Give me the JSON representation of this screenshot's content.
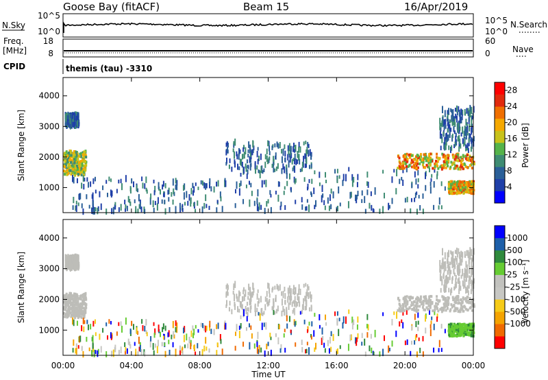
{
  "header": {
    "station": "Goose Bay (fitACF)",
    "beam": "Beam 15",
    "date": "16/Apr/2019"
  },
  "sky_panel": {
    "left_label": "N.Sky",
    "left_ticks": [
      "10^5",
      "10^0"
    ],
    "right_ticks": [
      "10^5",
      "10^0"
    ],
    "right_label": "N.Search"
  },
  "freq_panel": {
    "label_top": "Freq.",
    "label_bottom": "[MHz]",
    "left_ticks": [
      "18",
      "8"
    ],
    "right_ticks": [
      "60",
      "0"
    ],
    "right_label": "Nave"
  },
  "cpid": {
    "label": "CPID",
    "value": "themis (tau) -3310"
  },
  "colors": {
    "power_scale": [
      "#0000ff",
      "#1f3fa8",
      "#2a5f98",
      "#3f8c73",
      "#55b34a",
      "#c8c21a",
      "#f5a800",
      "#f06f00",
      "#e12a0d",
      "#ff0000"
    ],
    "velocity_scale": [
      "#ff0000",
      "#f06a00",
      "#f4a300",
      "#f6cb18",
      "#c7c7c3",
      "#c2c2be",
      "#66cc33",
      "#2f8a3d",
      "#1d5fa9",
      "#0000ff"
    ],
    "ground_scatter": "#bdbdb8"
  },
  "chart_data": [
    {
      "type": "heatmap",
      "title": "Power",
      "xlabel": "",
      "ylabel": "Slant Range [km]",
      "xlim_hours": [
        0,
        24
      ],
      "ylim_km": [
        180,
        4600
      ],
      "y_ticks": [
        "1000",
        "2000",
        "3000",
        "4000"
      ],
      "colorbar": {
        "label": "Power [dB]",
        "ticks": [
          "4",
          "8",
          "12",
          "16",
          "20",
          "24",
          "28"
        ],
        "range": [
          0,
          30
        ]
      },
      "scatter_regions": [
        {
          "t0": 0.0,
          "t1": 1.3,
          "r0": 1400,
          "r1": 2200,
          "level": "16-24 dB"
        },
        {
          "t0": 0.1,
          "t1": 0.9,
          "r0": 3000,
          "r1": 3400,
          "level": "4-8 dB"
        },
        {
          "t0": 0.5,
          "t1": 9.5,
          "r0": 200,
          "r1": 1300,
          "level": "4-12 dB"
        },
        {
          "t0": 9.5,
          "t1": 14.5,
          "r0": 1500,
          "r1": 2500,
          "level": "4-12 dB"
        },
        {
          "t0": 10.0,
          "t1": 22.5,
          "r0": 200,
          "r1": 1600,
          "level": "4-12 dB"
        },
        {
          "t0": 19.5,
          "t1": 24.0,
          "r0": 1600,
          "r1": 2100,
          "level": "16-28 dB"
        },
        {
          "t0": 22.5,
          "t1": 24.0,
          "r0": 800,
          "r1": 1200,
          "level": "20-28 dB"
        },
        {
          "t0": 22.0,
          "t1": 24.0,
          "r0": 2200,
          "r1": 3600,
          "level": "4-8 dB"
        }
      ]
    },
    {
      "type": "heatmap",
      "title": "Velocity",
      "xlabel": "Time UT",
      "ylabel": "Slant Range [km]",
      "xlim_hours": [
        0,
        24
      ],
      "ylim_km": [
        180,
        4600
      ],
      "x_ticks": [
        "00:00",
        "04:00",
        "08:00",
        "12:00",
        "16:00",
        "20:00",
        "00:00"
      ],
      "y_ticks": [
        "1000",
        "2000",
        "3000",
        "4000"
      ],
      "colorbar": {
        "label": "Velocity [m s⁻¹]",
        "ticks": [
          "1000",
          "500",
          "100",
          "25",
          "-25",
          "-100",
          "-500",
          "-1000"
        ]
      },
      "scatter_regions": [
        {
          "t0": 0.0,
          "t1": 1.3,
          "r0": 1400,
          "r1": 2200,
          "level": "ground scatter"
        },
        {
          "t0": 0.1,
          "t1": 0.9,
          "r0": 3000,
          "r1": 3400,
          "level": "ground scatter"
        },
        {
          "t0": 0.5,
          "t1": 9.5,
          "r0": 200,
          "r1": 1300,
          "level": "mixed -500..500"
        },
        {
          "t0": 9.5,
          "t1": 14.5,
          "r0": 1500,
          "r1": 2500,
          "level": "ground scatter"
        },
        {
          "t0": 10.0,
          "t1": 22.5,
          "r0": 200,
          "r1": 1600,
          "level": "mixed -500..500"
        },
        {
          "t0": 19.5,
          "t1": 24.0,
          "r0": 1600,
          "r1": 2100,
          "level": "ground scatter"
        },
        {
          "t0": 22.5,
          "t1": 24.0,
          "r0": 800,
          "r1": 1200,
          "level": "100-500"
        },
        {
          "t0": 22.0,
          "t1": 24.0,
          "r0": 2200,
          "r1": 3600,
          "level": "ground scatter"
        }
      ]
    }
  ]
}
